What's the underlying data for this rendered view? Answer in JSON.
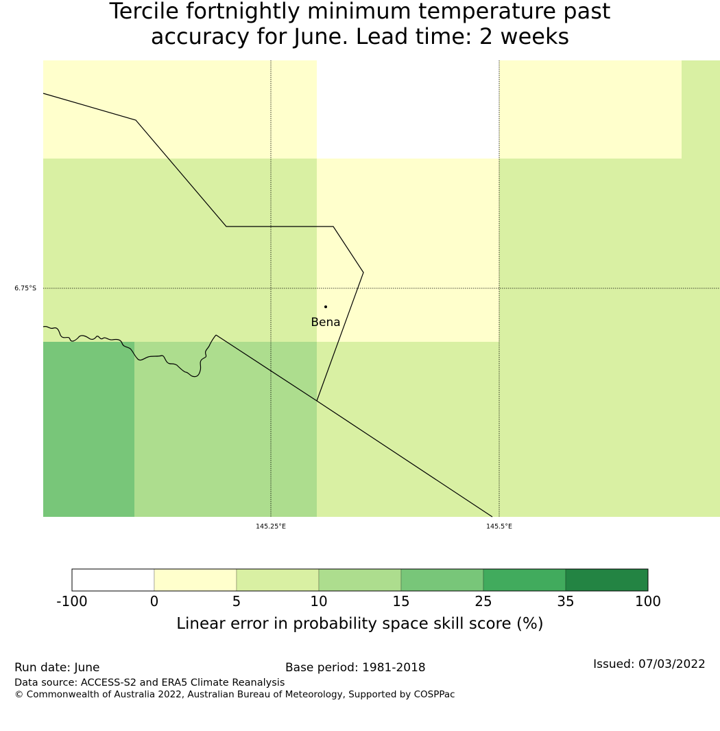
{
  "title": {
    "line1": "Tercile fortnightly minimum temperature past",
    "line2": "accuracy for June. Lead time: 2 weeks"
  },
  "map": {
    "lat_label": "6.75°S",
    "lon_labels": [
      "145.25°E",
      "145.5°E"
    ],
    "place_name": "Bena",
    "cell_colors": {
      "white": "#ffffff",
      "0_to_5": "#ffffcc",
      "5_to_10": "#d9f0a3",
      "10_to_15": "#addd8e",
      "15_to_25": "#78c679"
    }
  },
  "colorbar": {
    "ticks": [
      "-100",
      "0",
      "5",
      "10",
      "15",
      "25",
      "35",
      "100"
    ],
    "colors": [
      "#ffffff",
      "#ffffcc",
      "#d9f0a3",
      "#addd8e",
      "#78c679",
      "#41ab5d",
      "#238443"
    ],
    "label": "Linear error in probability space skill score (%)"
  },
  "footer": {
    "run_date": "Run date: June",
    "base_period": "Base period: 1981-2018",
    "issued": "Issued: 07/03/2022",
    "data_source": "Data source: ACCESS-S2 and ERA5 Climate Reanalysis",
    "copyright": "© Commonwealth of Australia 2022, Australian Bureau of Meteorology, Supported by COSPPac"
  }
}
